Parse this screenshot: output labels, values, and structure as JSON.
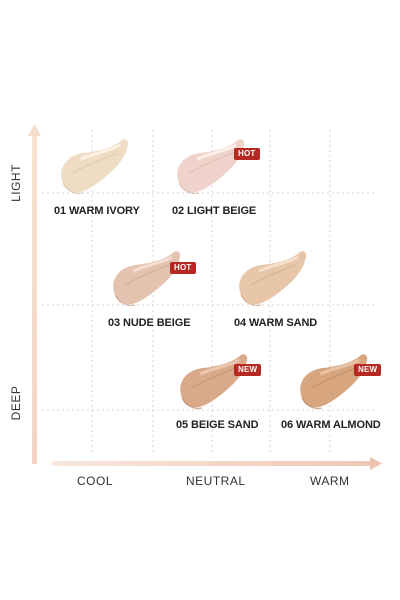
{
  "axes": {
    "y_top": "LIGHT",
    "y_bottom": "DEEP",
    "x_left": "COOL",
    "x_mid": "NEUTRAL",
    "x_right": "WARM"
  },
  "shades": [
    {
      "label": "01 WARM IVORY",
      "badge": "",
      "color": "#eedcc3"
    },
    {
      "label": "02 LIGHT BEIGE",
      "badge": "HOT",
      "color": "#efd3cb"
    },
    {
      "label": "03 NUDE BEIGE",
      "badge": "HOT",
      "color": "#e4c2b0"
    },
    {
      "label": "04 WARM SAND",
      "badge": "",
      "color": "#e7c6a9"
    },
    {
      "label": "05 BEIGE SAND",
      "badge": "NEW",
      "color": "#d9a98a"
    },
    {
      "label": "06 WARM ALMOND",
      "badge": "NEW",
      "color": "#d7a67e"
    }
  ],
  "colors": {
    "badge": "#b62822",
    "arrow": "#f1d7c8",
    "grid": "#dddddd"
  }
}
